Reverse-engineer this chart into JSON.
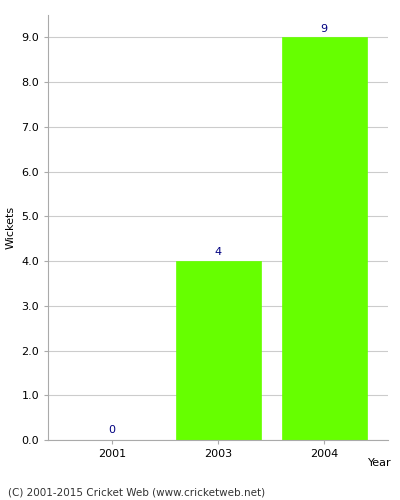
{
  "years": [
    2001,
    2003,
    2004
  ],
  "wickets": [
    0,
    4,
    9
  ],
  "bar_color": "#66ff00",
  "bar_edgecolor": "#66ff00",
  "xlabel": "Year",
  "ylabel": "Wickets",
  "ylim": [
    0,
    9.5
  ],
  "yticks": [
    0.0,
    1.0,
    2.0,
    3.0,
    4.0,
    5.0,
    6.0,
    7.0,
    8.0,
    9.0
  ],
  "label_color": "#000080",
  "label_fontsize": 8,
  "axis_fontsize": 8,
  "tick_fontsize": 8,
  "footer": "(C) 2001-2015 Cricket Web (www.cricketweb.net)",
  "footer_fontsize": 7.5,
  "background_color": "#ffffff",
  "bar_width": 0.8,
  "xlim": [
    1999.5,
    2005.5
  ],
  "grid_color": "#cccccc",
  "spine_color": "#aaaaaa"
}
